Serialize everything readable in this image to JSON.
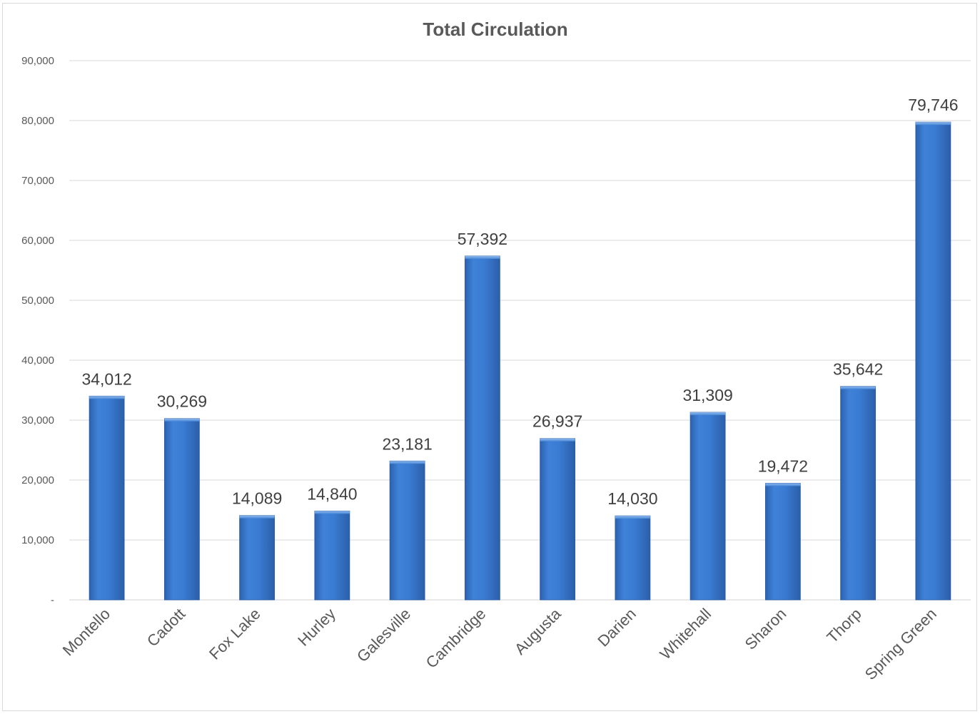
{
  "chart_data": {
    "type": "bar",
    "title": "Total Circulation",
    "xlabel": "",
    "ylabel": "",
    "categories": [
      "Montello",
      "Cadott",
      "Fox Lake",
      "Hurley",
      "Galesville",
      "Cambridge",
      "Augusta",
      "Darien",
      "Whitehall",
      "Sharon",
      "Thorp",
      "Spring Green"
    ],
    "values": [
      34012,
      30269,
      14089,
      14840,
      23181,
      57392,
      26937,
      14030,
      31309,
      19472,
      35642,
      79746
    ],
    "value_labels": [
      "34,012",
      "30,269",
      "14,089",
      "14,840",
      "23,181",
      "57,392",
      "26,937",
      "14,030",
      "31,309",
      "19,472",
      "35,642",
      "79,746"
    ],
    "yticks": [
      0,
      10000,
      20000,
      30000,
      40000,
      50000,
      60000,
      70000,
      80000,
      90000
    ],
    "ytick_labels": [
      "-",
      "10,000",
      "20,000",
      "30,000",
      "40,000",
      "50,000",
      "60,000",
      "70,000",
      "80,000",
      "90,000"
    ],
    "ylim": [
      0,
      90000
    ],
    "grid": true,
    "legend": "none",
    "bar_color": "#3a7bd5",
    "bar_color_dark": "#2a5ea8"
  }
}
